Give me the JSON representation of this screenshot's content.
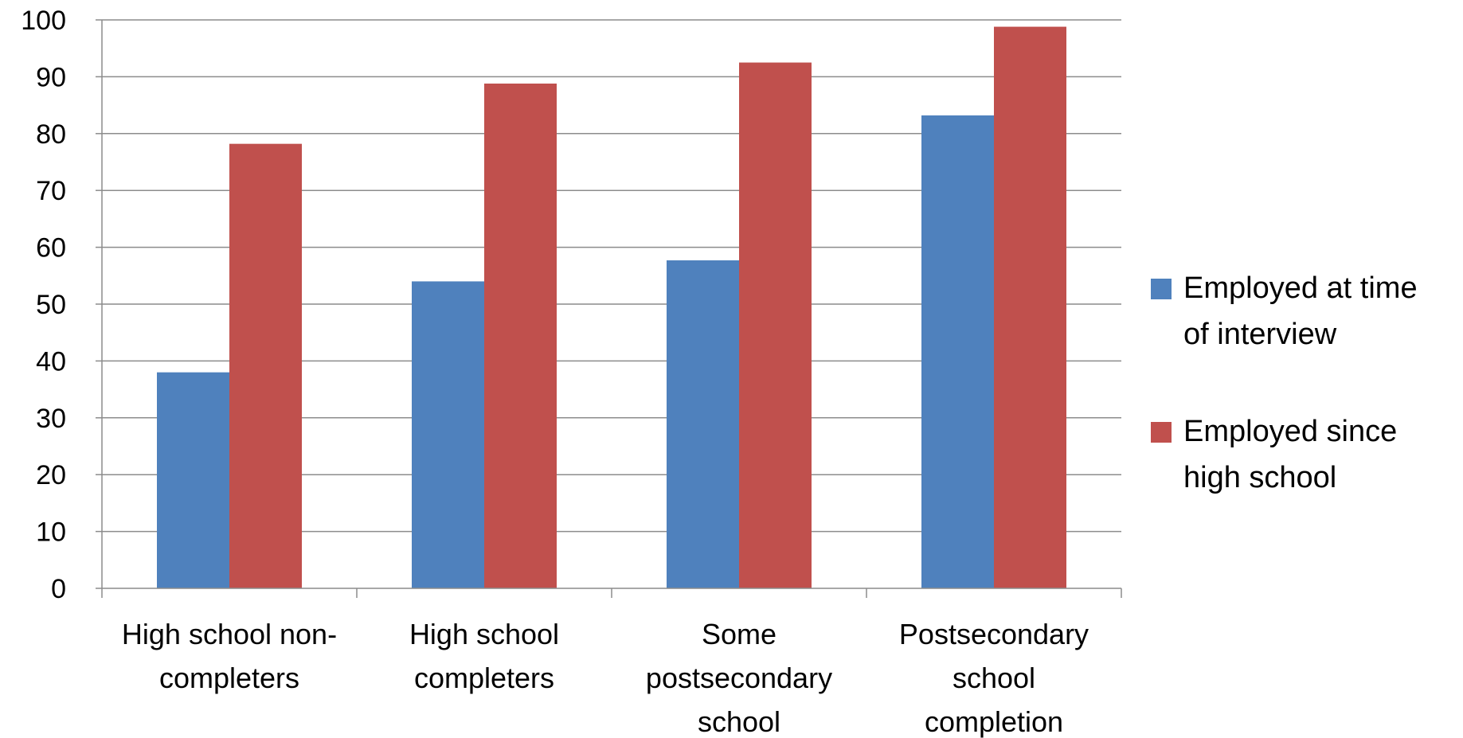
{
  "chart_data": {
    "type": "bar",
    "title": "",
    "xlabel": "",
    "ylabel": "",
    "categories": [
      "High school non-completers",
      "High school completers",
      "Some postsecondary school",
      "Postsecondary school completion"
    ],
    "category_label_lines": [
      [
        "High school non-",
        "completers"
      ],
      [
        "High school",
        "completers"
      ],
      [
        "Some",
        "postsecondary",
        "school"
      ],
      [
        "Postsecondary",
        "school",
        "completion"
      ]
    ],
    "series": [
      {
        "name": "Employed at time of interview",
        "legend_lines": [
          "Employed at time",
          "of interview"
        ],
        "color": "#4F81BD",
        "values": [
          38,
          54,
          57.7,
          83.2
        ]
      },
      {
        "name": "Employed since high school",
        "legend_lines": [
          "Employed since",
          "high school"
        ],
        "color": "#C0504D",
        "values": [
          78.2,
          88.8,
          92.5,
          98.8
        ]
      }
    ],
    "ylim": [
      0,
      100
    ],
    "yticks": [
      0,
      10,
      20,
      30,
      40,
      50,
      60,
      70,
      80,
      90,
      100
    ],
    "grid": true,
    "legend_position": "right"
  }
}
